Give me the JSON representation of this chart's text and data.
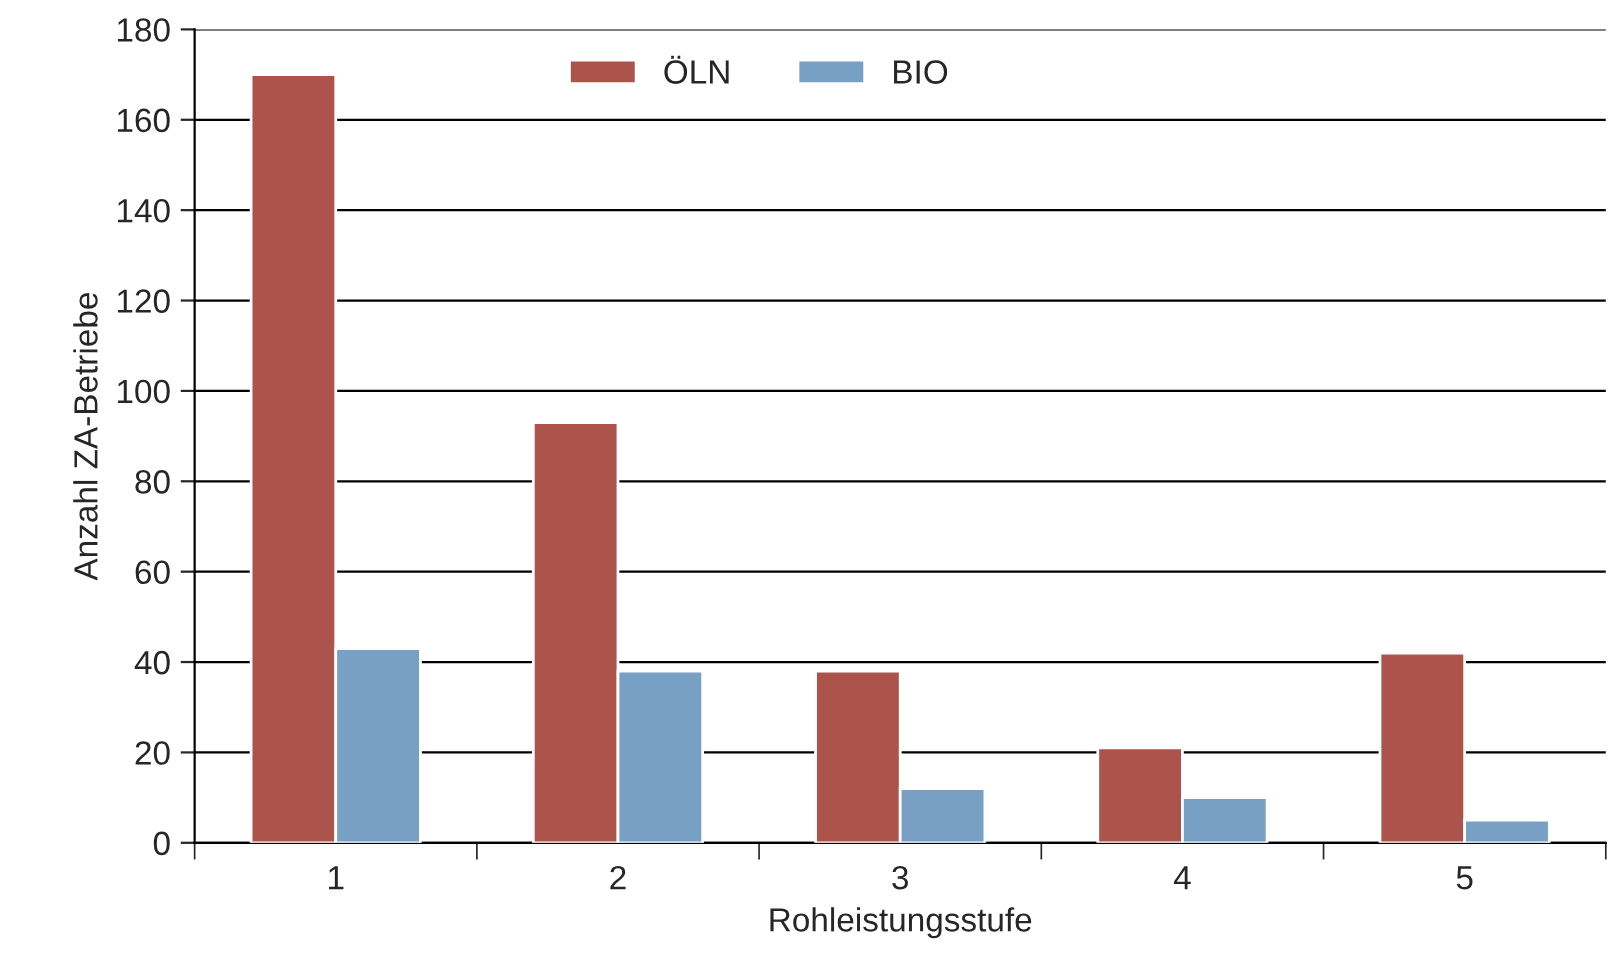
{
  "chart_data": {
    "type": "bar",
    "xlabel": "Rohleistungsstufe",
    "ylabel": "Anzahl ZA-Betriebe",
    "categories": [
      "1",
      "2",
      "3",
      "4",
      "5"
    ],
    "series": [
      {
        "name": "ÖLN",
        "color": "#ac544b",
        "values": [
          170,
          93,
          38,
          21,
          42
        ]
      },
      {
        "name": "BIO",
        "color": "#789fc4",
        "values": [
          43,
          38,
          12,
          10,
          5
        ]
      }
    ],
    "ylim": [
      0,
      180
    ],
    "yticks": [
      0,
      20,
      40,
      60,
      80,
      100,
      120,
      140,
      160,
      180
    ],
    "grid": "y",
    "legend": "top"
  }
}
